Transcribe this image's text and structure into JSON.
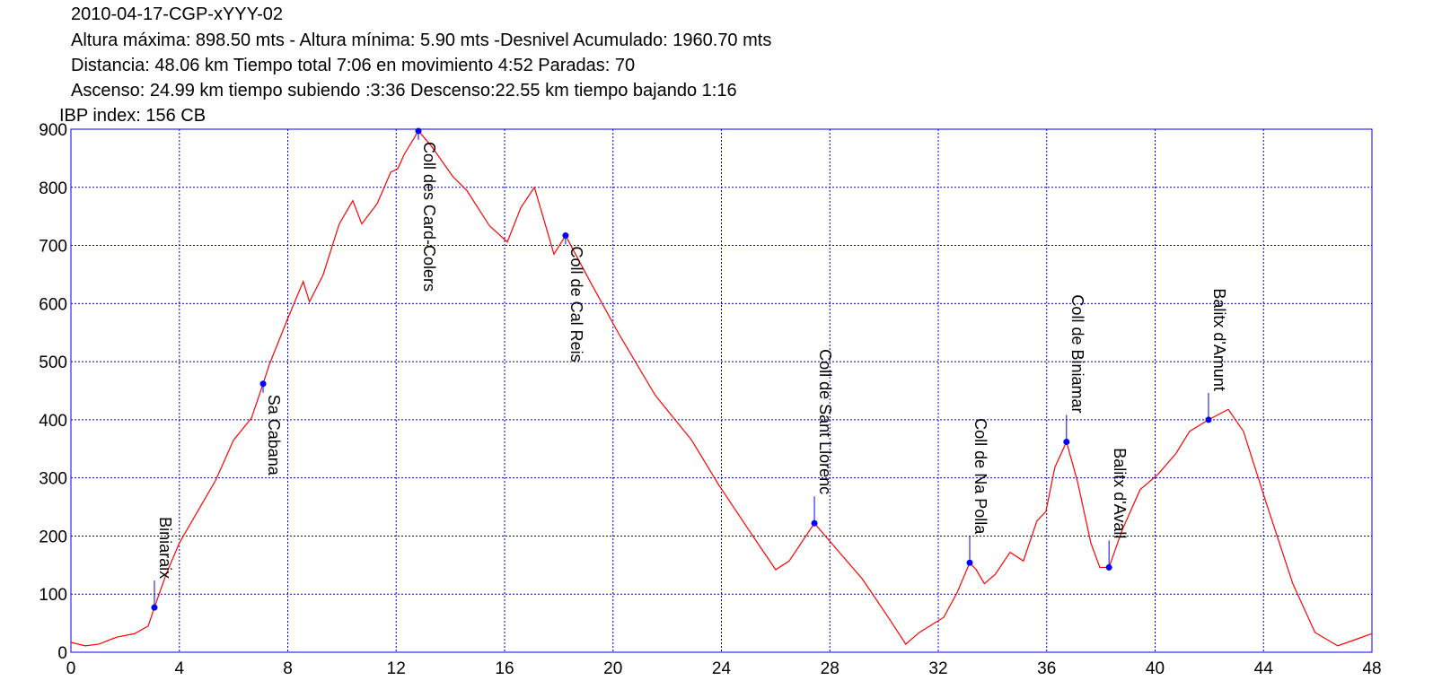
{
  "chart_data": {
    "type": "line",
    "title": "2010-04-17-CGP-xYYY-02",
    "subtitle": [
      "Altura máxima: 898.50 mts - Altura mínima: 5.90 mts -Desnivel Acumulado: 1960.70 mts",
      "Distancia: 48.06 km  Tiempo total 7:06  en movimiento 4:52 Paradas: 70",
      "Ascenso: 24.99 km  tiempo subiendo :3:36  Descenso:22.55 km tiempo bajando 1:16",
      "IBP index: 156 CB"
    ],
    "x": [
      0,
      0.53,
      1.03,
      1.69,
      2.35,
      2.85,
      3.08,
      3.51,
      4.0,
      4.67,
      5.33,
      6.0,
      6.66,
      7.09,
      7.32,
      7.98,
      8.57,
      8.8,
      9.3,
      9.9,
      10.4,
      10.73,
      11.3,
      11.8,
      12.06,
      12.3,
      12.82,
      13.28,
      14.1,
      14.6,
      15.44,
      16.1,
      16.6,
      17.1,
      17.42,
      17.82,
      18.25,
      19.2,
      20.2,
      21.56,
      22.9,
      23.9,
      24.9,
      26.0,
      26.5,
      27.43,
      28.35,
      29.2,
      30.2,
      30.8,
      31.3,
      32.2,
      32.7,
      33.16,
      33.4,
      33.7,
      34.1,
      34.65,
      35.14,
      35.64,
      35.97,
      36.3,
      36.73,
      37.13,
      37.63,
      37.96,
      38.3,
      38.79,
      39.45,
      40.1,
      40.77,
      41.27,
      41.97,
      42.7,
      43.26,
      44.1,
      45.08,
      45.9,
      46.74,
      47.4,
      48.0
    ],
    "values": [
      17,
      11,
      14,
      26,
      32,
      45,
      77,
      134,
      188,
      242,
      295,
      365,
      403,
      462,
      495,
      572,
      638,
      603,
      649,
      737,
      777,
      737,
      772,
      826,
      832,
      857,
      897,
      872,
      818,
      795,
      734,
      706,
      765,
      800,
      749,
      685,
      717,
      634,
      549,
      442,
      365,
      288,
      218,
      142,
      157,
      222,
      172,
      126,
      57,
      14,
      34,
      60,
      103,
      154,
      142,
      118,
      134,
      172,
      157,
      226,
      242,
      318,
      362,
      295,
      188,
      146,
      146,
      211,
      280,
      306,
      342,
      380,
      400,
      418,
      380,
      257,
      118,
      34,
      11,
      22,
      32
    ],
    "color": "#ff0000",
    "points": [
      {
        "label": "Biniaraix",
        "x": 3.08,
        "y": 77
      },
      {
        "label": "Sa Cabana",
        "x": 7.09,
        "y": 462
      },
      {
        "label": "Coll des Card-Colers",
        "x": 12.82,
        "y": 897
      },
      {
        "label": "Coll de Cal Reis",
        "x": 18.25,
        "y": 717
      },
      {
        "label": "Coll de Sant Llorenc",
        "x": 27.43,
        "y": 222
      },
      {
        "label": "Coll de Na Polla",
        "x": 33.16,
        "y": 154
      },
      {
        "label": "Coll de Biniamar",
        "x": 36.73,
        "y": 362
      },
      {
        "label": "Balitx d'Avall",
        "x": 38.3,
        "y": 146
      },
      {
        "label": "Balitx d'Amunt",
        "x": 41.97,
        "y": 400
      }
    ],
    "point_color": "#0000ff",
    "xlim": [
      0,
      48
    ],
    "xticks": [
      0,
      4,
      8,
      12,
      16,
      20,
      24,
      28,
      32,
      36,
      40,
      44,
      48
    ],
    "ylim": [
      0,
      900
    ],
    "yticks": [
      0,
      100,
      200,
      300,
      400,
      500,
      600,
      700,
      800,
      900
    ],
    "grid": true
  }
}
